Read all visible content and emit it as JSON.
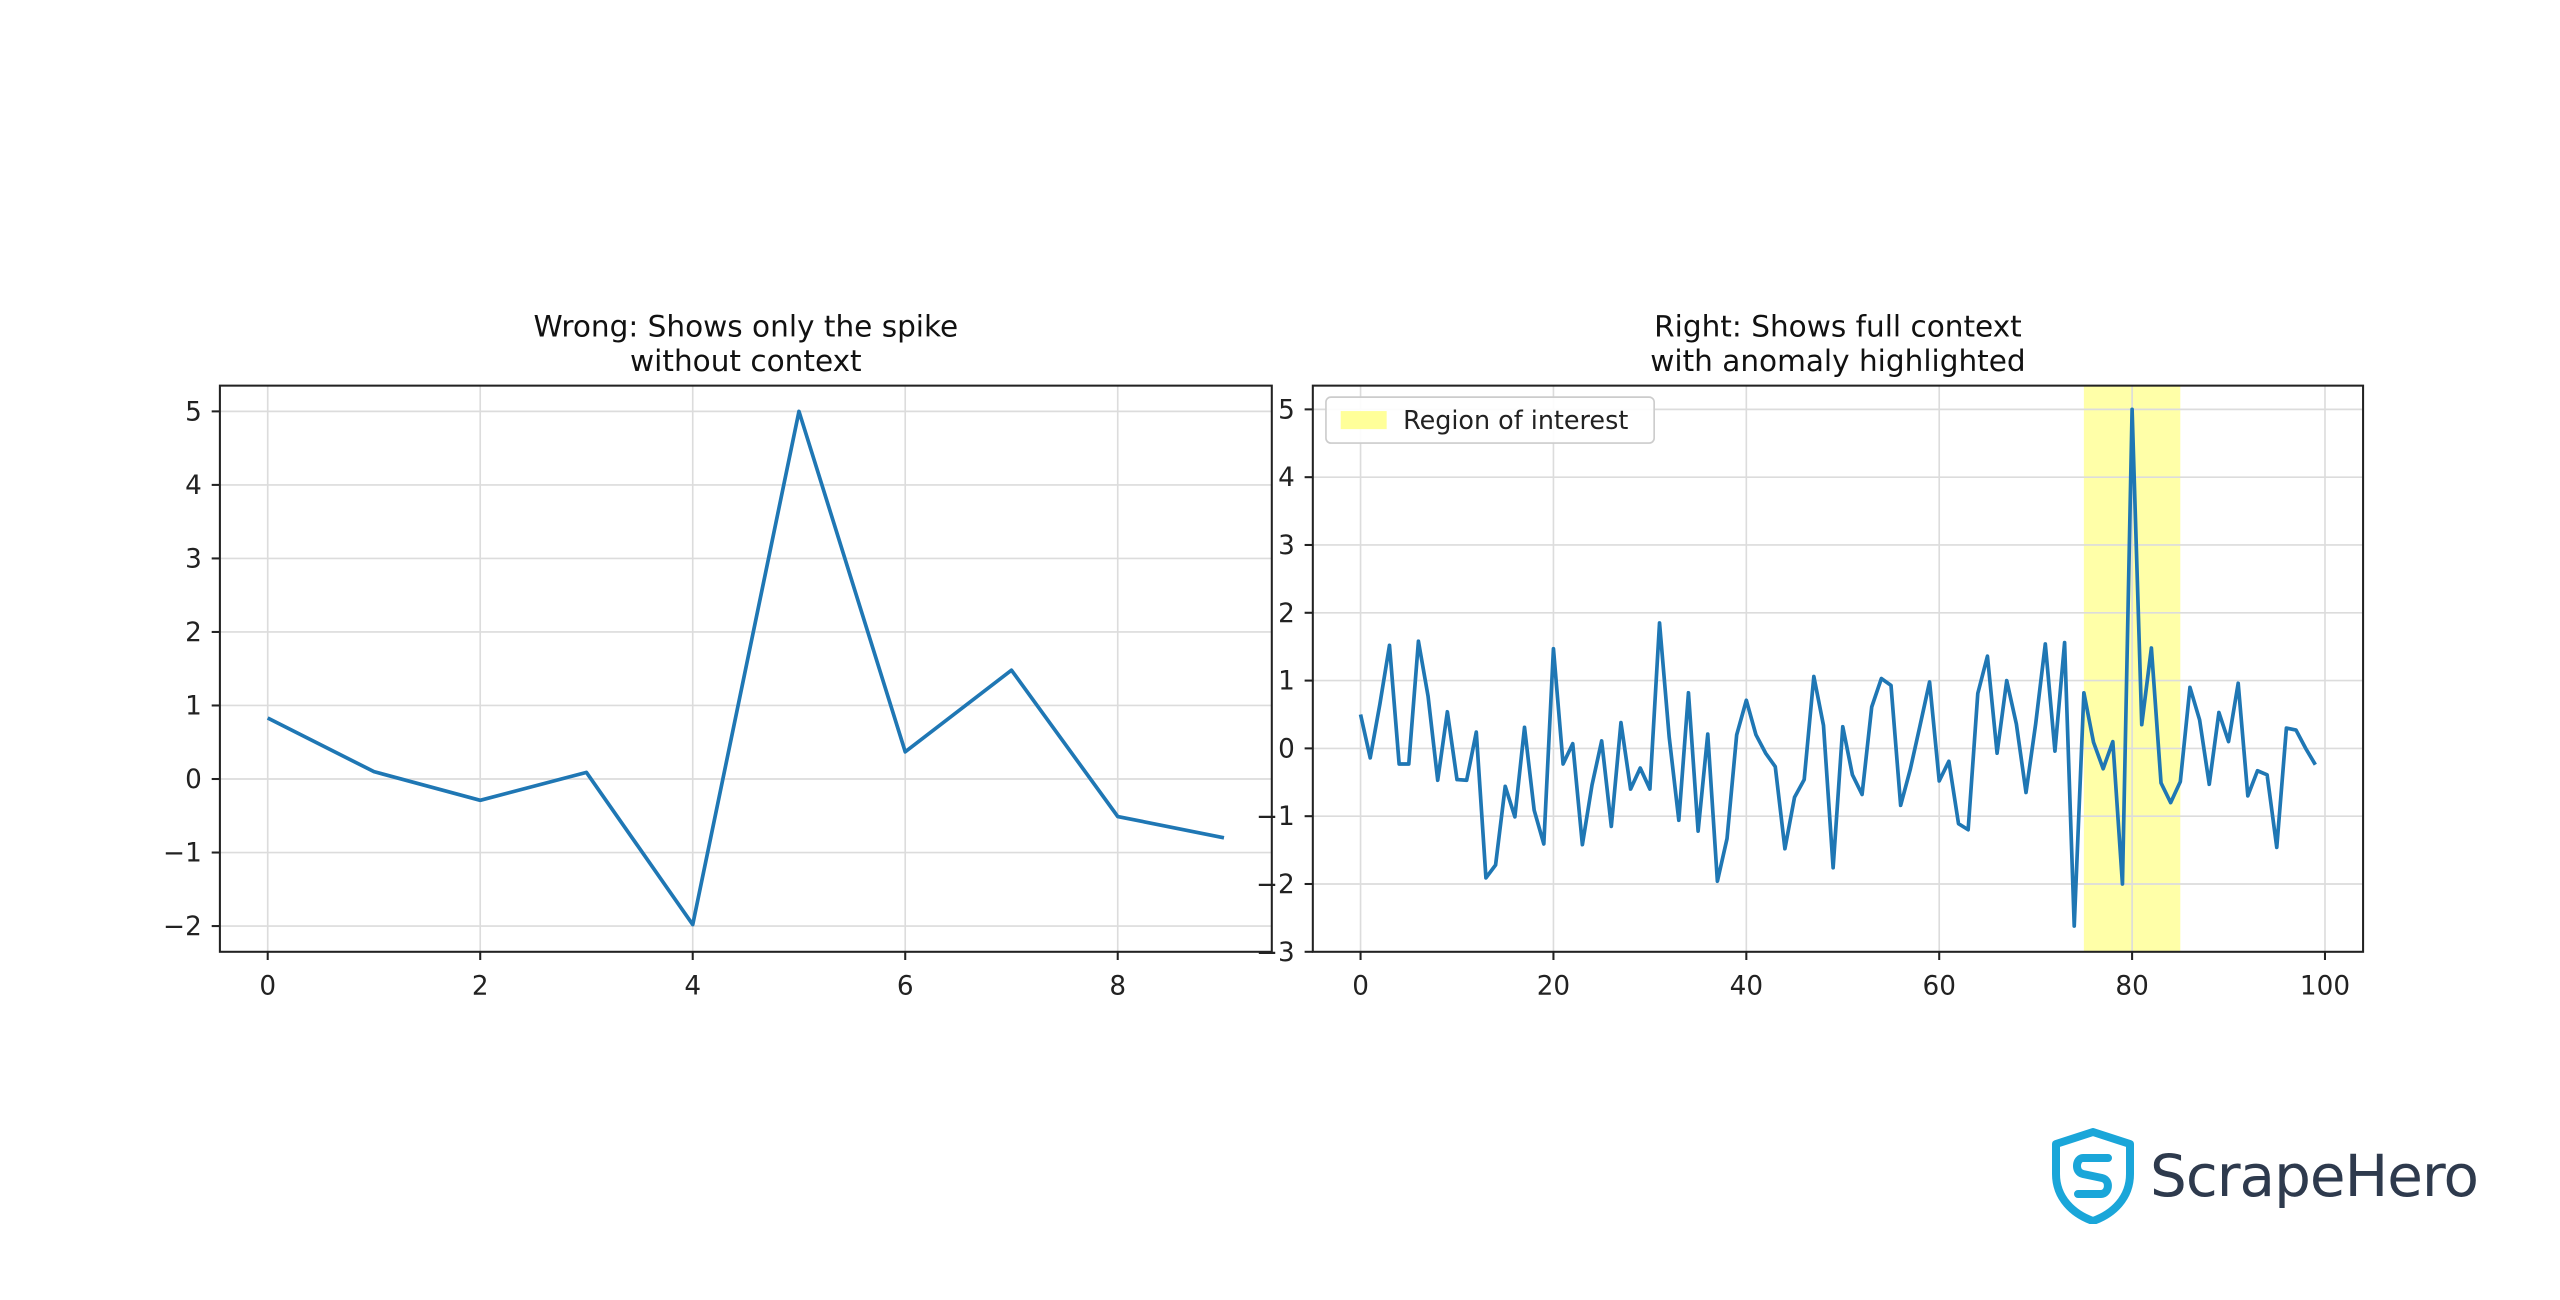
{
  "brand": {
    "name": "ScrapeHero",
    "colors": {
      "logo_shield": "#1aa6d9",
      "logo_text": "#2e3a4d"
    }
  },
  "chart_data": [
    {
      "type": "line",
      "title": "Wrong: Shows only the spike\nwithout context",
      "title_lines": [
        "Wrong: Shows only the spike",
        "without context"
      ],
      "xlabel": "",
      "ylabel": "",
      "x": [
        0,
        1,
        2,
        3,
        4,
        5,
        6,
        7,
        8,
        9
      ],
      "series": [
        {
          "values": [
            0.83,
            0.1,
            -0.29,
            0.09,
            -1.98,
            5.0,
            0.37,
            1.48,
            -0.51,
            -0.8
          ],
          "color": "#1f77b4"
        }
      ],
      "xlim": [
        -0.45,
        9.45
      ],
      "ylim": [
        -2.35,
        5.35
      ],
      "xticks": [
        0,
        2,
        4,
        6,
        8
      ],
      "xtick_labels": [
        "0",
        "2",
        "4",
        "6",
        "8"
      ],
      "yticks": [
        -2,
        -1,
        0,
        1,
        2,
        3,
        4,
        5
      ],
      "ytick_labels": [
        "−2",
        "−1",
        "0",
        "1",
        "2",
        "3",
        "4",
        "5"
      ],
      "grid": true
    },
    {
      "type": "line",
      "title": "Right: Shows full context\nwith anomaly highlighted",
      "title_lines": [
        "Right: Shows full context",
        "with anomaly highlighted"
      ],
      "xlabel": "",
      "ylabel": "",
      "x_start": 0,
      "x_step": 1,
      "series": [
        {
          "values": [
            0.5,
            -0.14,
            0.65,
            1.52,
            -0.23,
            -0.23,
            1.58,
            0.77,
            -0.47,
            0.54,
            -0.46,
            -0.47,
            0.24,
            -1.91,
            -1.72,
            -0.56,
            -1.01,
            0.31,
            -0.91,
            -1.41,
            1.47,
            -0.23,
            0.07,
            -1.42,
            -0.54,
            0.11,
            -1.15,
            0.38,
            -0.6,
            -0.29,
            -0.6,
            1.85,
            0.17,
            -1.06,
            0.82,
            -1.22,
            0.21,
            -1.96,
            -1.33,
            0.2,
            0.71,
            0.2,
            -0.07,
            -0.27,
            -1.48,
            -0.72,
            -0.46,
            1.06,
            0.34,
            -1.76,
            0.32,
            -0.39,
            -0.68,
            0.61,
            1.03,
            0.93,
            -0.84,
            -0.31,
            0.33,
            0.98,
            -0.48,
            -0.19,
            -1.11,
            -1.2,
            0.81,
            1.36,
            -0.07,
            1.0,
            0.36,
            -0.65,
            0.36,
            1.54,
            -0.04,
            1.56,
            -2.62,
            0.82,
            0.09,
            -0.3,
            0.1,
            -2.0,
            5.0,
            0.35,
            1.48,
            -0.51,
            -0.8,
            -0.49,
            0.9,
            0.42,
            -0.53,
            0.53,
            0.1,
            0.96,
            -0.7,
            -0.33,
            -0.39,
            -1.46,
            0.3,
            0.27,
            0.0,
            -0.24
          ],
          "color": "#1f77b4"
        }
      ],
      "highlight": {
        "label": "Region of interest",
        "x_start": 75,
        "x_end": 85,
        "color": "#ffff99"
      },
      "legend": {
        "location": "upper-left",
        "entries": [
          "Region of interest"
        ]
      },
      "xlim": [
        -4.95,
        103.95
      ],
      "ylim": [
        -3.0,
        5.35
      ],
      "xticks": [
        0,
        20,
        40,
        60,
        80,
        100
      ],
      "xtick_labels": [
        "0",
        "20",
        "40",
        "60",
        "80",
        "100"
      ],
      "yticks": [
        -3,
        -2,
        -1,
        0,
        1,
        2,
        3,
        4,
        5
      ],
      "ytick_labels": [
        "−3",
        "−2",
        "−1",
        "0",
        "1",
        "2",
        "3",
        "4",
        "5"
      ],
      "grid": true
    }
  ]
}
